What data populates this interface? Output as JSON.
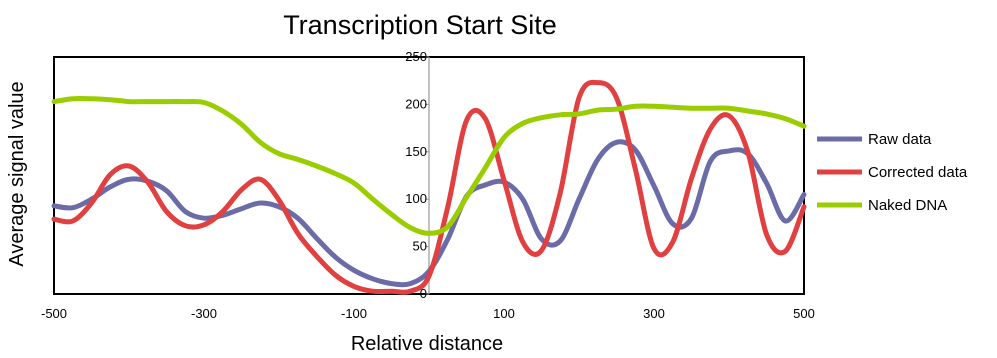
{
  "chart_data": {
    "type": "line",
    "title": "Transcription Start Site",
    "xlabel": "Relative distance",
    "ylabel": "Average signal value",
    "xlim": [
      -500,
      500
    ],
    "ylim": [
      0,
      250
    ],
    "x_ticks": [
      "-500",
      "-300",
      "-100",
      "100",
      "300",
      "500"
    ],
    "y_ticks": [
      "0",
      "50",
      "100",
      "150",
      "200",
      "250"
    ],
    "legend_position": "right",
    "grid": false,
    "series": [
      {
        "name": "Raw data",
        "color": "#6b6ba8",
        "x": [
          -500,
          -475,
          -450,
          -425,
          -400,
          -375,
          -350,
          -325,
          -300,
          -275,
          -250,
          -225,
          -200,
          -175,
          -150,
          -125,
          -100,
          -75,
          -50,
          -25,
          0,
          25,
          50,
          75,
          100,
          125,
          150,
          175,
          200,
          225,
          250,
          275,
          300,
          325,
          350,
          375,
          400,
          425,
          450,
          475,
          500
        ],
        "values": [
          93,
          91,
          100,
          113,
          121,
          119,
          109,
          87,
          80,
          83,
          90,
          96,
          92,
          80,
          59,
          39,
          25,
          16,
          11,
          11,
          24,
          58,
          103,
          115,
          118,
          100,
          58,
          56,
          100,
          142,
          160,
          152,
          114,
          74,
          80,
          140,
          151,
          148,
          117,
          77,
          105
        ]
      },
      {
        "name": "Corrected data",
        "color": "#e04040",
        "x": [
          -500,
          -475,
          -450,
          -425,
          -400,
          -375,
          -350,
          -325,
          -300,
          -275,
          -250,
          -225,
          -200,
          -175,
          -150,
          -125,
          -100,
          -75,
          -50,
          -25,
          0,
          25,
          50,
          75,
          100,
          125,
          150,
          175,
          200,
          225,
          250,
          275,
          300,
          325,
          350,
          375,
          400,
          425,
          450,
          475,
          500
        ],
        "values": [
          79,
          77,
          96,
          126,
          135,
          118,
          87,
          72,
          73,
          87,
          110,
          121,
          99,
          64,
          40,
          20,
          8,
          3,
          3,
          3,
          19,
          92,
          183,
          185,
          120,
          55,
          46,
          107,
          207,
          223,
          207,
          132,
          48,
          55,
          122,
          174,
          188,
          150,
          63,
          45,
          92
        ]
      },
      {
        "name": "Naked DNA",
        "color": "#9acd00",
        "x": [
          -500,
          -475,
          -450,
          -425,
          -400,
          -375,
          -350,
          -325,
          -300,
          -275,
          -250,
          -225,
          -200,
          -175,
          -150,
          -125,
          -100,
          -75,
          -50,
          -25,
          0,
          25,
          50,
          75,
          100,
          125,
          150,
          175,
          200,
          225,
          250,
          275,
          300,
          325,
          350,
          375,
          400,
          425,
          450,
          475,
          500
        ],
        "values": [
          203,
          206,
          206,
          205,
          203,
          203,
          203,
          203,
          202,
          193,
          179,
          160,
          148,
          142,
          135,
          127,
          117,
          100,
          84,
          70,
          64,
          71,
          102,
          133,
          165,
          180,
          186,
          189,
          190,
          194,
          195,
          198,
          198,
          197,
          196,
          196,
          196,
          193,
          190,
          185,
          177
        ]
      }
    ]
  }
}
